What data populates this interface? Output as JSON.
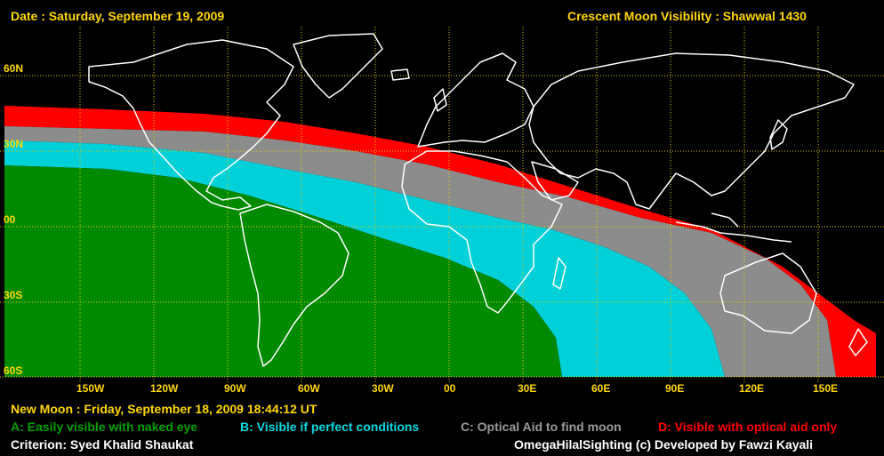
{
  "header": {
    "date_text": "Date : Saturday, September 19, 2009",
    "title": "Crescent Moon Visibility : Shawwal  1430"
  },
  "map": {
    "lat_labels": [
      "60N",
      "30N",
      "00",
      "30S",
      "60S"
    ],
    "lon_labels": [
      "150W",
      "120W",
      "90W",
      "60W",
      "30W",
      "00",
      "30E",
      "60E",
      "90E",
      "120E",
      "150E"
    ],
    "grid_line_color": "#e0d000",
    "label_color": "#ffd700"
  },
  "footer": {
    "new_moon": "New Moon : Friday, September 18, 2009  18:44:12  UT",
    "legend": [
      {
        "text": "A: Easily visible with naked eye",
        "color": "#008000"
      },
      {
        "text": "B: Visible if perfect conditions",
        "color": "#00cccc"
      },
      {
        "text": "C: Optical Aid to find moon",
        "color": "#909090"
      },
      {
        "text": "D: Visible with optical aid only",
        "color": "#ff0000"
      }
    ],
    "criterion": "Criterion: Syed Khalid Shaukat",
    "credit": "OmegaHilalSighting  (c)  Developed by Fawzi Kayali"
  }
}
